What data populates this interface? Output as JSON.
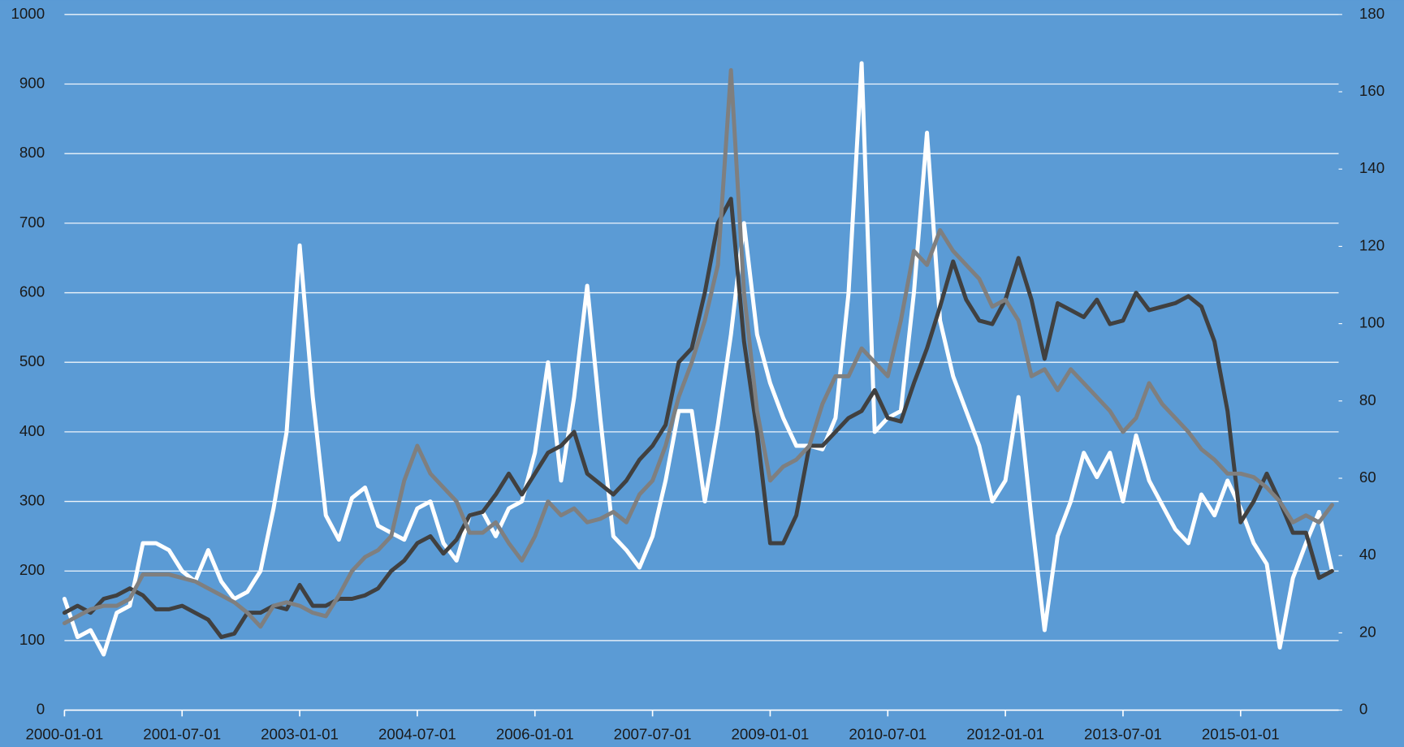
{
  "chart_data": {
    "type": "line",
    "x": [
      "2000-01-01",
      "2000-03-01",
      "2000-05-01",
      "2000-07-01",
      "2000-09-01",
      "2000-11-01",
      "2001-01-01",
      "2001-03-01",
      "2001-05-01",
      "2001-07-01",
      "2001-09-01",
      "2001-11-01",
      "2002-01-01",
      "2002-03-01",
      "2002-05-01",
      "2002-07-01",
      "2002-09-01",
      "2002-11-01",
      "2003-01-01",
      "2003-03-01",
      "2003-05-01",
      "2003-07-01",
      "2003-09-01",
      "2003-11-01",
      "2004-01-01",
      "2004-03-01",
      "2004-05-01",
      "2004-07-01",
      "2004-09-01",
      "2004-11-01",
      "2005-01-01",
      "2005-03-01",
      "2005-05-01",
      "2005-07-01",
      "2005-09-01",
      "2005-11-01",
      "2006-01-01",
      "2006-03-01",
      "2006-05-01",
      "2006-07-01",
      "2006-09-01",
      "2006-11-01",
      "2007-01-01",
      "2007-03-01",
      "2007-05-01",
      "2007-07-01",
      "2007-09-01",
      "2007-11-01",
      "2008-01-01",
      "2008-03-01",
      "2008-05-01",
      "2008-07-01",
      "2008-09-01",
      "2008-11-01",
      "2009-01-01",
      "2009-03-01",
      "2009-05-01",
      "2009-07-01",
      "2009-09-01",
      "2009-11-01",
      "2010-01-01",
      "2010-03-01",
      "2010-05-01",
      "2010-07-01",
      "2010-09-01",
      "2010-11-01",
      "2011-01-01",
      "2011-03-01",
      "2011-05-01",
      "2011-07-01",
      "2011-09-01",
      "2011-11-01",
      "2012-01-01",
      "2012-03-01",
      "2012-05-01",
      "2012-07-01",
      "2012-09-01",
      "2012-11-01",
      "2013-01-01",
      "2013-03-01",
      "2013-05-01",
      "2013-07-01",
      "2013-09-01",
      "2013-11-01",
      "2014-01-01",
      "2014-03-01",
      "2014-05-01",
      "2014-07-01",
      "2014-09-01",
      "2014-11-01",
      "2015-01-01",
      "2015-03-01",
      "2015-05-01",
      "2015-07-01",
      "2015-09-01",
      "2015-11-01",
      "2016-01-01",
      "2016-03-01"
    ],
    "series": [
      {
        "color": "#ffffff",
        "values": [
          160,
          105,
          115,
          80,
          140,
          150,
          240,
          240,
          230,
          200,
          185,
          230,
          185,
          160,
          170,
          200,
          290,
          400,
          668,
          450,
          280,
          245,
          305,
          320,
          265,
          255,
          245,
          290,
          300,
          240,
          215,
          280,
          285,
          250,
          290,
          300,
          370,
          500,
          330,
          450,
          610,
          420,
          250,
          230,
          205,
          250,
          330,
          430,
          430,
          300,
          410,
          540,
          700,
          540,
          470,
          420,
          380,
          380,
          375,
          420,
          600,
          930,
          400,
          420,
          430,
          600,
          830,
          560,
          480,
          430,
          380,
          300,
          330,
          450,
          275,
          115,
          250,
          300,
          370,
          335,
          370,
          300,
          395,
          330,
          295,
          260,
          240,
          310,
          280,
          330,
          290,
          240,
          210,
          90,
          190,
          240,
          285,
          200
        ]
      },
      {
        "color": "#404040",
        "values": [
          140,
          150,
          140,
          160,
          165,
          175,
          165,
          145,
          145,
          150,
          140,
          130,
          105,
          110,
          140,
          140,
          150,
          145,
          180,
          150,
          150,
          160,
          160,
          165,
          175,
          200,
          215,
          240,
          250,
          225,
          245,
          280,
          285,
          310,
          340,
          310,
          340,
          370,
          380,
          400,
          340,
          325,
          310,
          330,
          360,
          380,
          410,
          500,
          520,
          600,
          700,
          735,
          530,
          400,
          240,
          240,
          280,
          380,
          380,
          400,
          420,
          430,
          460,
          420,
          415,
          470,
          520,
          580,
          645,
          590,
          560,
          555,
          590,
          650,
          590,
          505,
          585,
          575,
          565,
          590,
          555,
          560,
          600,
          575,
          580,
          585,
          595,
          580,
          530,
          430,
          270,
          300,
          340,
          300,
          255,
          255,
          190,
          200
        ]
      },
      {
        "color": "#7f7f7f",
        "axis": "y2",
        "values": [
          22.5,
          24.3,
          26.1,
          27,
          27,
          28.8,
          35.1,
          35.1,
          35.1,
          34.2,
          33.3,
          31.5,
          29.7,
          27.9,
          25.2,
          21.6,
          27,
          27.9,
          27,
          25.2,
          24.3,
          29.7,
          36,
          39.6,
          41.4,
          45,
          59.4,
          68.4,
          61.2,
          57.6,
          54,
          45.9,
          45.9,
          48.6,
          43.2,
          38.7,
          45,
          54,
          50.4,
          52.2,
          48.6,
          49.5,
          51.3,
          48.6,
          55.8,
          59.4,
          68.4,
          81,
          90,
          100.8,
          115.2,
          165.6,
          108,
          77.4,
          59.4,
          63,
          64.8,
          68.4,
          79.2,
          86.4,
          86.4,
          93.6,
          90,
          86.4,
          100.8,
          118.8,
          115.2,
          124.2,
          118.8,
          115.2,
          111.6,
          104.4,
          106.2,
          100.8,
          86.4,
          88.2,
          82.8,
          88.2,
          84.6,
          81,
          77.4,
          72,
          75.6,
          84.6,
          79.2,
          75.6,
          72,
          67.5,
          64.8,
          61.2,
          61.2,
          60.3,
          57.6,
          54,
          48.6,
          50.4,
          48.6,
          53.1
        ]
      }
    ],
    "xlim": [
      "2000-01-01",
      "2016-04-01"
    ],
    "xticks": [
      "2000-01-01",
      "2001-07-01",
      "2003-01-01",
      "2004-07-01",
      "2006-01-01",
      "2007-07-01",
      "2009-01-01",
      "2010-07-01",
      "2012-01-01",
      "2013-07-01",
      "2015-01-01"
    ],
    "ylim": [
      0,
      1000
    ],
    "yticks": [
      0,
      100,
      200,
      300,
      400,
      500,
      600,
      700,
      800,
      900,
      1000
    ],
    "y2lim": [
      0,
      180
    ],
    "y2ticks": [
      0,
      20,
      40,
      60,
      80,
      100,
      120,
      140,
      160,
      180
    ],
    "grid": true
  }
}
